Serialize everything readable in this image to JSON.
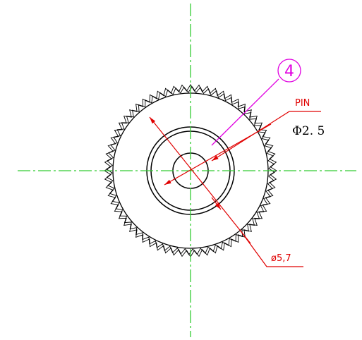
{
  "labels": {
    "part_number": "4",
    "pin": "PIN",
    "pin_diameter": "Φ2. 5",
    "outer_diameter": "ø5,7"
  }
}
